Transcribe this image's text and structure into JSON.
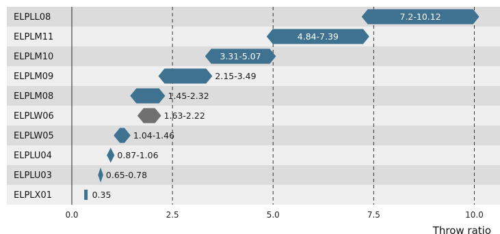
{
  "chart_data": {
    "type": "range-bar",
    "xlabel": "Throw ratio",
    "xlim": [
      0,
      10.5
    ],
    "xticks": [
      0,
      2.5,
      5,
      7.5,
      10
    ],
    "xtick_labels": [
      "0.0",
      "2.5",
      "5.0",
      "7.5",
      "10.0"
    ],
    "grid": "vertical-dashed",
    "rows": [
      {
        "name": "ELPLL08",
        "min": 7.2,
        "max": 10.12,
        "label": "7.2-10.12",
        "color": "#3e7290"
      },
      {
        "name": "ELPLM11",
        "min": 4.84,
        "max": 7.39,
        "label": "4.84-7.39",
        "color": "#3e7290"
      },
      {
        "name": "ELPLM10",
        "min": 3.31,
        "max": 5.07,
        "label": "3.31-5.07",
        "color": "#3e7290"
      },
      {
        "name": "ELPLM09",
        "min": 2.15,
        "max": 3.49,
        "label": "2.15-3.49",
        "color": "#3e7290"
      },
      {
        "name": "ELPLM08",
        "min": 1.45,
        "max": 2.32,
        "label": "1.45-2.32",
        "color": "#3e7290"
      },
      {
        "name": "ELPLW06",
        "min": 1.63,
        "max": 2.22,
        "label": "1.63-2.22",
        "color": "#707070"
      },
      {
        "name": "ELPLW05",
        "min": 1.04,
        "max": 1.46,
        "label": "1.04-1.46",
        "color": "#3e7290"
      },
      {
        "name": "ELPLU04",
        "min": 0.87,
        "max": 1.06,
        "label": "0.87-1.06",
        "color": "#3e7290"
      },
      {
        "name": "ELPLU03",
        "min": 0.65,
        "max": 0.78,
        "label": "0.65-0.78",
        "color": "#3e7290"
      },
      {
        "name": "ELPLX01",
        "min": 0.35,
        "max": 0.35,
        "label": "0.35",
        "color": "#3e7290"
      }
    ]
  }
}
